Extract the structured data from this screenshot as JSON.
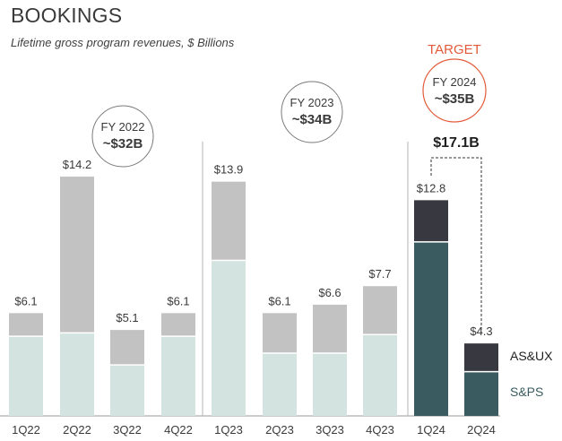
{
  "chart_data": {
    "type": "bar",
    "title": "BOOKINGS",
    "subtitle": "Lifetime gross program revenues, $ Billions",
    "categories": [
      "1Q22",
      "2Q22",
      "3Q22",
      "4Q22",
      "1Q23",
      "2Q23",
      "3Q23",
      "4Q23",
      "1Q24",
      "2Q24"
    ],
    "totals": [
      6.1,
      14.2,
      5.1,
      6.1,
      13.9,
      6.1,
      6.6,
      7.7,
      12.8,
      4.3
    ],
    "total_labels": [
      "$6.1",
      "$14.2",
      "$5.1",
      "$6.1",
      "$13.9",
      "$6.1",
      "$6.6",
      "$7.7",
      "$12.8",
      "$4.3"
    ],
    "series": [
      {
        "name": "S&PS",
        "values": [
          4.7,
          4.9,
          3.0,
          4.7,
          9.2,
          3.7,
          3.7,
          4.8,
          10.3,
          2.6
        ]
      },
      {
        "name": "AS&UX",
        "values": [
          1.4,
          9.3,
          2.1,
          1.4,
          4.7,
          2.4,
          2.9,
          2.9,
          2.5,
          1.7
        ]
      }
    ],
    "colors": {
      "bottom_light": "#d2e3e0",
      "top_light": "#c2c2c2",
      "bottom_dark": "#3a5c60",
      "top_dark": "#383840",
      "target_ring": "#e25a3a",
      "axis": "#9a9a9a"
    },
    "highlight_categories": [
      "1Q24",
      "2Q24"
    ],
    "legend": {
      "top": "AS&UX",
      "bottom": "S&PS",
      "placement": "right"
    },
    "annotations": {
      "fy2022": {
        "label": "FY 2022",
        "value": "~$32B"
      },
      "fy2023": {
        "label": "FY 2023",
        "value": "~$34B"
      },
      "target": {
        "header": "TARGET",
        "label": "FY 2024",
        "value": "~$35B"
      },
      "h1_2024_total": "$17.1B"
    },
    "ylim": [
      0,
      16
    ],
    "grid": false
  }
}
